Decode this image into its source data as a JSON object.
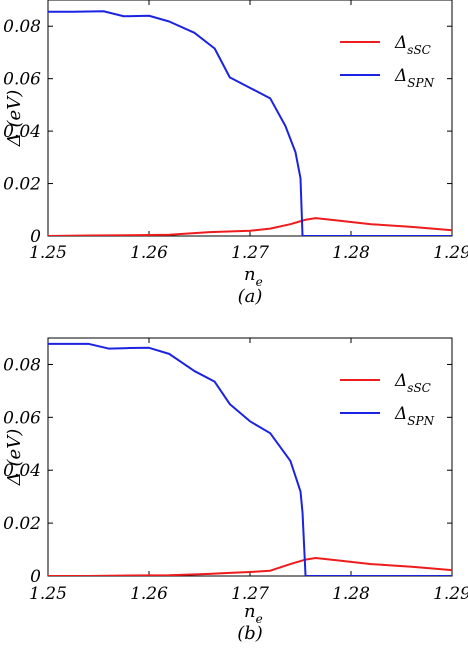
{
  "chart_data": [
    {
      "type": "line",
      "panel_label": "(a)",
      "xlabel": "n",
      "xlabel_sub": "e",
      "ylabel": "Δ (eV)",
      "xlim": [
        1.25,
        1.29
      ],
      "ylim": [
        0,
        0.09
      ],
      "x_ticks": [
        "1.25",
        "1.26",
        "1.27",
        "1.28",
        "1.29"
      ],
      "y_ticks": [
        "0",
        "0.02",
        "0.04",
        "0.06",
        "0.08"
      ],
      "grid": false,
      "legend_position": "top-right",
      "series": [
        {
          "name": "Δ",
          "name_sub": "sSC",
          "color": "#ee1c1c",
          "x": [
            1.25,
            1.254,
            1.258,
            1.262,
            1.266,
            1.27,
            1.272,
            1.274,
            1.2755,
            1.2765,
            1.278,
            1.282,
            1.286,
            1.29
          ],
          "y": [
            0.0,
            0.0002,
            0.0003,
            0.0005,
            0.0015,
            0.002,
            0.0028,
            0.0045,
            0.0062,
            0.0068,
            0.0062,
            0.0045,
            0.0035,
            0.0022
          ]
        },
        {
          "name": "Δ",
          "name_sub": "SPN",
          "color": "#1c23e0",
          "x": [
            1.25,
            1.2525,
            1.2555,
            1.2575,
            1.26,
            1.262,
            1.2645,
            1.2665,
            1.268,
            1.27,
            1.272,
            1.2735,
            1.2745,
            1.275,
            1.2752,
            1.2755,
            1.2757,
            1.2765,
            1.278,
            1.282,
            1.286,
            1.29
          ],
          "y": [
            0.0855,
            0.0855,
            0.0857,
            0.0838,
            0.084,
            0.0818,
            0.0775,
            0.0715,
            0.0605,
            0.0565,
            0.0525,
            0.042,
            0.032,
            0.022,
            0.0,
            0.0,
            0.0,
            0.0,
            0.0,
            0.0,
            0.0,
            0.0
          ]
        }
      ]
    },
    {
      "type": "line",
      "panel_label": "(b)",
      "xlabel": "n",
      "xlabel_sub": "e",
      "ylabel": "Δ (eV)",
      "xlim": [
        1.25,
        1.29
      ],
      "ylim": [
        0,
        0.09
      ],
      "x_ticks": [
        "1.25",
        "1.26",
        "1.27",
        "1.28",
        "1.29"
      ],
      "y_ticks": [
        "0",
        "0.02",
        "0.04",
        "0.06",
        "0.08"
      ],
      "grid": false,
      "legend_position": "top-right",
      "series": [
        {
          "name": "Δ",
          "name_sub": "sSC",
          "color": "#ee1c1c",
          "x": [
            1.25,
            1.254,
            1.258,
            1.262,
            1.266,
            1.268,
            1.27,
            1.272,
            1.274,
            1.2755,
            1.2765,
            1.278,
            1.282,
            1.286,
            1.29
          ],
          "y": [
            0.0,
            0.0,
            0.0002,
            0.0003,
            0.0008,
            0.0012,
            0.0015,
            0.002,
            0.0045,
            0.0062,
            0.0068,
            0.0062,
            0.0045,
            0.0035,
            0.0022
          ]
        },
        {
          "name": "Δ",
          "name_sub": "SPN",
          "color": "#1c23e0",
          "x": [
            1.25,
            1.254,
            1.256,
            1.258,
            1.26,
            1.262,
            1.2645,
            1.2665,
            1.268,
            1.27,
            1.272,
            1.274,
            1.275,
            1.2752,
            1.2755,
            1.2757,
            1.2765,
            1.278,
            1.282,
            1.286,
            1.29
          ],
          "y": [
            0.0878,
            0.0878,
            0.086,
            0.0862,
            0.0863,
            0.084,
            0.0775,
            0.0735,
            0.065,
            0.0585,
            0.054,
            0.0435,
            0.032,
            0.024,
            0.0,
            0.0,
            0.0,
            0.0,
            0.0,
            0.0,
            0.0
          ]
        }
      ]
    }
  ]
}
